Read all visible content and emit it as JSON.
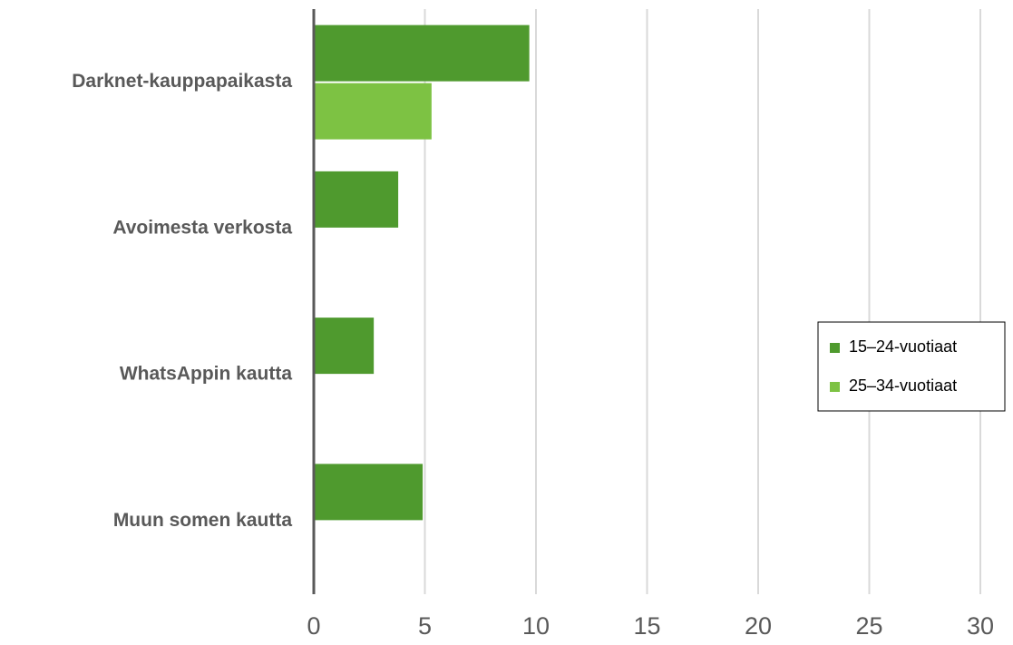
{
  "chart_data": {
    "type": "hbar",
    "categories": [
      "Darknet-kauppapaikasta",
      "Avoimesta verkosta",
      "WhatsAppin kautta",
      "Muun somen kautta"
    ],
    "series": [
      {
        "name": "15–24-vuotiaat",
        "color": "#4f9a2e",
        "values": [
          9.7,
          3.8,
          2.7,
          4.9
        ]
      },
      {
        "name": "25–34-vuotiaat",
        "color": "#7dc243",
        "values": [
          5.3,
          null,
          null,
          null
        ]
      }
    ],
    "xlim": [
      0,
      30
    ],
    "xticks": [
      0,
      5,
      10,
      15,
      20,
      25,
      30
    ],
    "grid": true,
    "legend": "right"
  }
}
